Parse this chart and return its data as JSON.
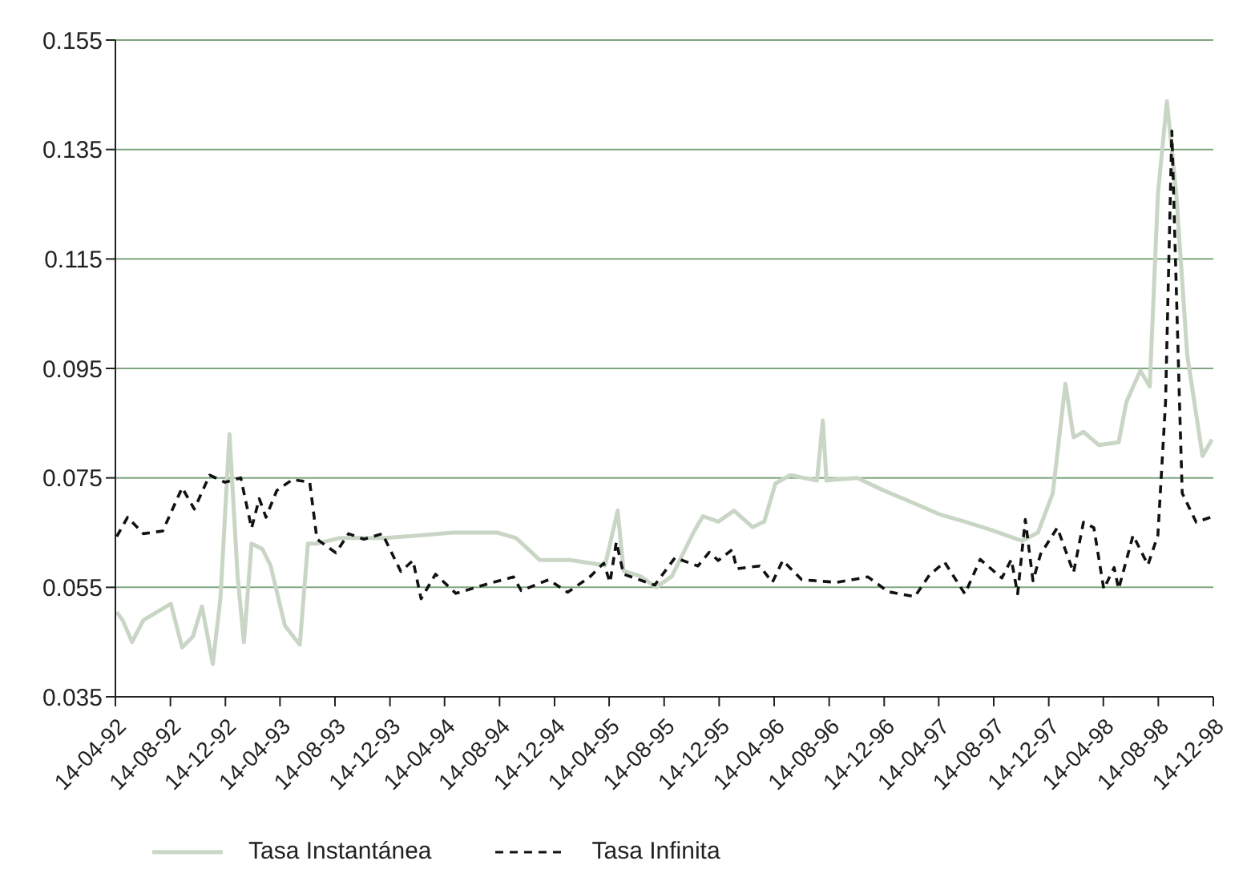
{
  "chart_data": {
    "type": "line",
    "legend": "bottom",
    "grid": "y",
    "marker": "none",
    "ylim": [
      0.035,
      0.155
    ],
    "yticks": [
      0.035,
      0.055,
      0.075,
      0.095,
      0.115,
      0.135,
      0.155
    ],
    "xlim": [
      "1992-04-14",
      "1998-12-14"
    ],
    "xticks": [
      {
        "value": "1992-04-14",
        "label": "14-04-92"
      },
      {
        "value": "1992-08-14",
        "label": "14-08-92"
      },
      {
        "value": "1992-12-14",
        "label": "14-12-92"
      },
      {
        "value": "1993-04-14",
        "label": "14-04-93"
      },
      {
        "value": "1993-08-14",
        "label": "14-08-93"
      },
      {
        "value": "1993-12-14",
        "label": "14-12-93"
      },
      {
        "value": "1994-04-14",
        "label": "14-04-94"
      },
      {
        "value": "1994-08-14",
        "label": "14-08-94"
      },
      {
        "value": "1994-12-14",
        "label": "14-12-94"
      },
      {
        "value": "1995-04-14",
        "label": "14-04-95"
      },
      {
        "value": "1995-08-14",
        "label": "14-08-95"
      },
      {
        "value": "1995-12-14",
        "label": "14-12-95"
      },
      {
        "value": "1996-04-14",
        "label": "14-04-96"
      },
      {
        "value": "1996-08-14",
        "label": "14-08-96"
      },
      {
        "value": "1996-12-14",
        "label": "14-12-96"
      },
      {
        "value": "1997-04-14",
        "label": "14-04-97"
      },
      {
        "value": "1997-08-14",
        "label": "14-08-97"
      },
      {
        "value": "1997-12-14",
        "label": "14-12-97"
      },
      {
        "value": "1998-04-14",
        "label": "14-04-98"
      },
      {
        "value": "1998-08-14",
        "label": "14-08-98"
      },
      {
        "value": "1998-12-14",
        "label": "14-12-98"
      }
    ],
    "series": [
      {
        "name": "Tasa Instantánea",
        "color": "#c9d6c6",
        "line_style": "solid",
        "x": [
          "1992-04-17",
          "1992-04-30",
          "1992-05-21",
          "1992-06-15",
          "1992-08-15",
          "1992-09-09",
          "1992-10-03",
          "1992-10-23",
          "1992-11-16",
          "1992-12-03",
          "1992-12-23",
          "1993-01-10",
          "1993-01-24",
          "1993-02-10",
          "1993-03-06",
          "1993-03-24",
          "1993-04-25",
          "1993-05-28",
          "1993-06-15",
          "1993-07-05",
          "1993-08-23",
          "1993-12-04",
          "1994-05-03",
          "1994-08-09",
          "1994-09-20",
          "1994-11-11",
          "1995-01-18",
          "1995-04-05",
          "1995-05-03",
          "1995-05-16",
          "1995-06-23",
          "1995-07-27",
          "1995-08-31",
          "1995-10-18",
          "1995-11-08",
          "1995-12-12",
          "1996-01-16",
          "1996-02-26",
          "1996-03-23",
          "1996-04-17",
          "1996-05-20",
          "1996-07-18",
          "1996-07-31",
          "1996-08-08",
          "1996-08-31",
          "1996-10-15",
          "1996-12-13",
          "1997-02-20",
          "1997-04-17",
          "1997-06-11",
          "1997-08-08",
          "1997-10-16",
          "1997-11-20",
          "1997-12-23",
          "1998-01-20",
          "1998-02-07",
          "1998-03-01",
          "1998-04-04",
          "1998-05-18",
          "1998-06-04",
          "1998-07-05",
          "1998-07-26",
          "1998-08-13",
          "1998-09-02",
          "1998-09-23",
          "1998-10-17",
          "1998-11-20",
          "1998-12-11"
        ],
        "values": [
          0.0505,
          0.049,
          0.045,
          0.049,
          0.052,
          0.044,
          0.046,
          0.0515,
          0.041,
          0.053,
          0.083,
          0.057,
          0.045,
          0.063,
          0.062,
          0.059,
          0.048,
          0.0445,
          0.063,
          0.063,
          0.064,
          0.064,
          0.065,
          0.065,
          0.064,
          0.06,
          0.06,
          0.059,
          0.069,
          0.058,
          0.057,
          0.055,
          0.057,
          0.065,
          0.068,
          0.067,
          0.069,
          0.066,
          0.067,
          0.074,
          0.0755,
          0.0745,
          0.0855,
          0.0745,
          0.0747,
          0.075,
          0.0727,
          0.0703,
          0.0683,
          0.067,
          0.0655,
          0.0635,
          0.065,
          0.0722,
          0.0922,
          0.0824,
          0.0834,
          0.081,
          0.0815,
          0.0888,
          0.0946,
          0.0917,
          0.1267,
          0.1438,
          0.1267,
          0.0975,
          0.079,
          0.082
        ]
      },
      {
        "name": "Tasa Infinita",
        "color": "#111111",
        "line_style": "dashed",
        "x": [
          "1992-04-17",
          "1992-05-11",
          "1992-06-15",
          "1992-07-28",
          "1992-09-09",
          "1992-10-06",
          "1992-11-09",
          "1992-12-13",
          "1993-01-17",
          "1993-02-10",
          "1993-02-27",
          "1993-03-14",
          "1993-04-07",
          "1993-05-12",
          "1993-06-19",
          "1993-07-05",
          "1993-08-16",
          "1993-09-13",
          "1993-10-17",
          "1993-11-27",
          "1994-01-07",
          "1994-02-03",
          "1994-02-21",
          "1994-03-25",
          "1994-05-09",
          "1994-07-30",
          "1994-09-14",
          "1994-10-01",
          "1994-12-01",
          "1995-01-12",
          "1995-03-02",
          "1995-04-02",
          "1995-04-16",
          "1995-04-30",
          "1995-05-16",
          "1995-07-24",
          "1995-09-07",
          "1995-10-28",
          "1995-11-22",
          "1995-12-12",
          "1996-01-12",
          "1996-01-22",
          "1996-03-13",
          "1996-04-10",
          "1996-05-03",
          "1996-06-14",
          "1996-08-31",
          "1996-11-08",
          "1996-12-23",
          "1997-02-20",
          "1997-03-24",
          "1997-04-27",
          "1997-06-11",
          "1997-07-15",
          "1997-09-01",
          "1997-09-22",
          "1997-10-06",
          "1997-10-23",
          "1997-11-09",
          "1997-11-26",
          "1998-01-02",
          "1998-02-07",
          "1998-03-01",
          "1998-03-24",
          "1998-04-15",
          "1998-05-08",
          "1998-05-18",
          "1998-06-19",
          "1998-07-22",
          "1998-08-13",
          "1998-08-30",
          "1998-09-13",
          "1998-09-30",
          "1998-10-06",
          "1998-11-06",
          "1998-12-11"
        ],
        "values": [
          0.0643,
          0.0678,
          0.0648,
          0.0653,
          0.0732,
          0.0693,
          0.0755,
          0.0742,
          0.075,
          0.0658,
          0.0712,
          0.0678,
          0.0727,
          0.0747,
          0.0742,
          0.0638,
          0.0613,
          0.0648,
          0.0638,
          0.0648,
          0.0579,
          0.0599,
          0.0529,
          0.0574,
          0.0539,
          0.0559,
          0.0569,
          0.0544,
          0.0564,
          0.0541,
          0.0569,
          0.0594,
          0.0559,
          0.0633,
          0.0574,
          0.0554,
          0.0604,
          0.0589,
          0.0614,
          0.0599,
          0.0619,
          0.0584,
          0.0589,
          0.0559,
          0.0599,
          0.0564,
          0.0559,
          0.0569,
          0.0542,
          0.0533,
          0.0572,
          0.0596,
          0.0538,
          0.0601,
          0.0567,
          0.0601,
          0.0538,
          0.0674,
          0.0562,
          0.0611,
          0.0659,
          0.0577,
          0.0669,
          0.0659,
          0.0547,
          0.0586,
          0.0547,
          0.0645,
          0.0591,
          0.0645,
          0.0888,
          0.1384,
          0.0888,
          0.0722,
          0.0669,
          0.0679
        ]
      }
    ]
  }
}
